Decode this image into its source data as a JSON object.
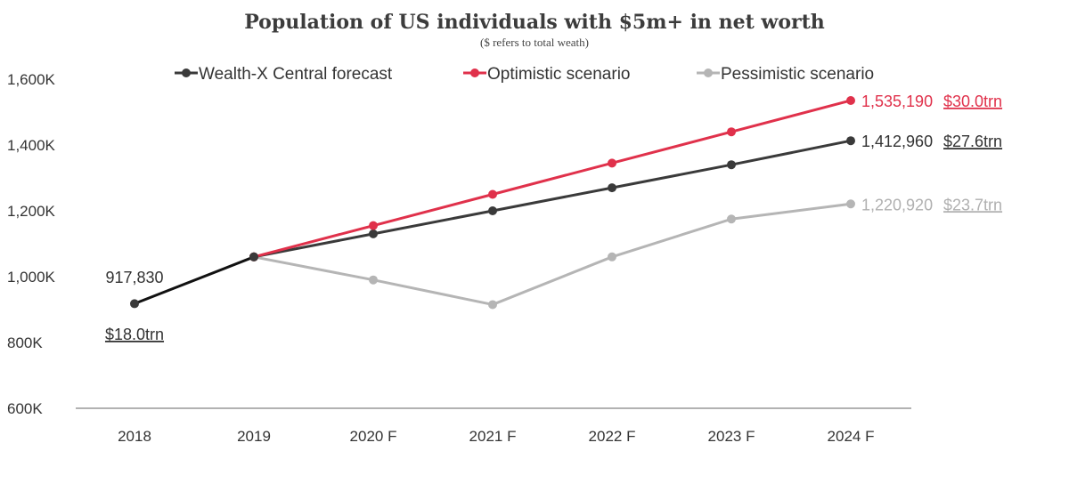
{
  "chart_data": {
    "type": "line",
    "title": "Population of US individuals with $5m+ in net worth",
    "subtitle": "($ refers to total weath)",
    "categories": [
      "2018",
      "2019",
      "2020 F",
      "2021 F",
      "2022 F",
      "2023 F",
      "2024 F"
    ],
    "y_ticks": [
      "600K",
      "800K",
      "1,000K",
      "1,200K",
      "1,400K",
      "1,600K"
    ],
    "ylim": [
      600000,
      1600000
    ],
    "grid": false,
    "legend_position": "top",
    "series": [
      {
        "name": "Wealth-X Central forecast",
        "color": "#3a3a3a",
        "values": [
          917830,
          1060000,
          1130000,
          1200000,
          1270000,
          1340000,
          1412960
        ]
      },
      {
        "name": "Optimistic scenario",
        "color": "#e0314b",
        "values": [
          917830,
          1060000,
          1155000,
          1250000,
          1345000,
          1440000,
          1535190
        ]
      },
      {
        "name": "Pessimistic scenario",
        "color": "#b5b5b5",
        "values": [
          917830,
          1060000,
          990000,
          915000,
          1060000,
          1175000,
          1220920
        ]
      }
    ],
    "annotations": {
      "start_value": "917,830",
      "start_wealth": "$18.0trn",
      "end_labels": [
        {
          "series": "Optimistic scenario",
          "value": "1,535,190",
          "wealth": "$30.0trn",
          "color": "#e0314b"
        },
        {
          "series": "Wealth-X Central forecast",
          "value": "1,412,960",
          "wealth": "$27.6trn",
          "color": "#333333"
        },
        {
          "series": "Pessimistic scenario",
          "value": "1,220,920",
          "wealth": "$23.7trn",
          "color": "#b0b0b0"
        }
      ]
    },
    "start_segment_color": "#111111"
  }
}
